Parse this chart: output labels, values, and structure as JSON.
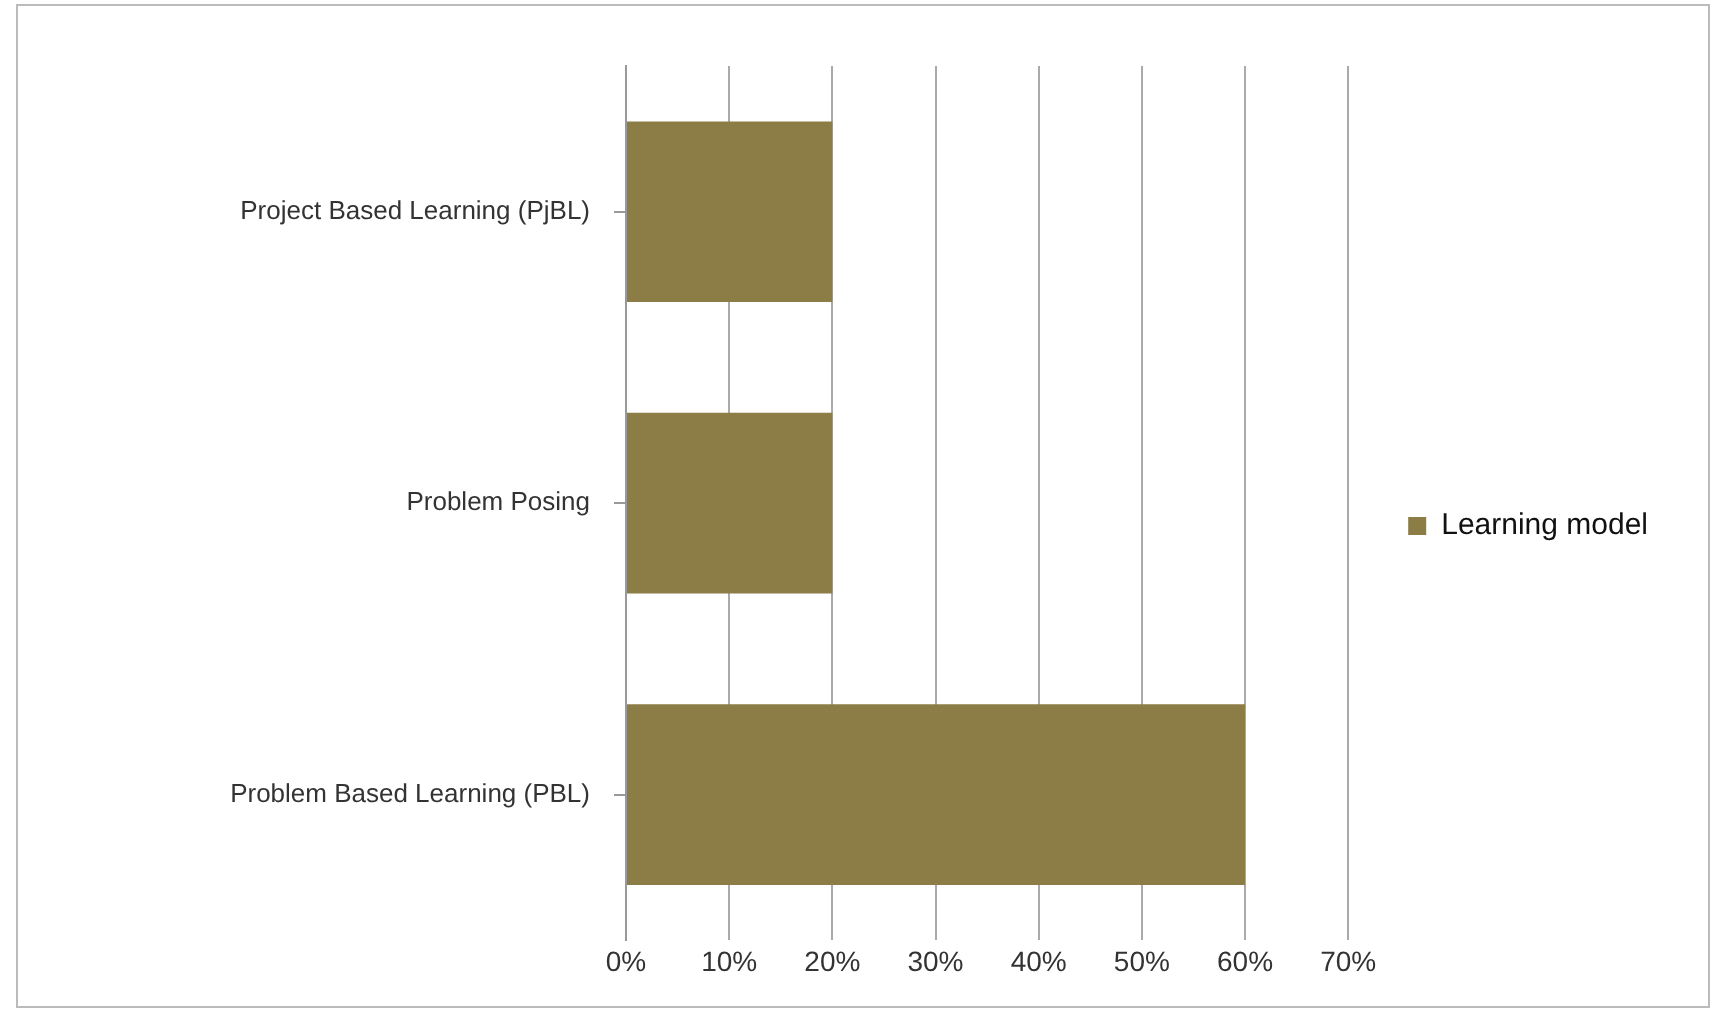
{
  "chart_data": {
    "type": "bar",
    "orientation": "horizontal",
    "categories": [
      "Project Based Learning (PjBL)",
      "Problem Posing",
      "Problem Based Learning (PBL)"
    ],
    "series": [
      {
        "name": "Learning model",
        "color": "#8b7d45",
        "values": [
          20,
          20,
          60
        ]
      }
    ],
    "xlim": [
      0,
      70
    ],
    "xticks": [
      {
        "value": 0,
        "label": "0%"
      },
      {
        "value": 10,
        "label": "10%"
      },
      {
        "value": 20,
        "label": "20%"
      },
      {
        "value": 30,
        "label": "30%"
      },
      {
        "value": 40,
        "label": "40%"
      },
      {
        "value": 50,
        "label": "50%"
      },
      {
        "value": 60,
        "label": "60%"
      },
      {
        "value": 70,
        "label": "70%"
      }
    ],
    "grid": "x",
    "legend": "right"
  }
}
